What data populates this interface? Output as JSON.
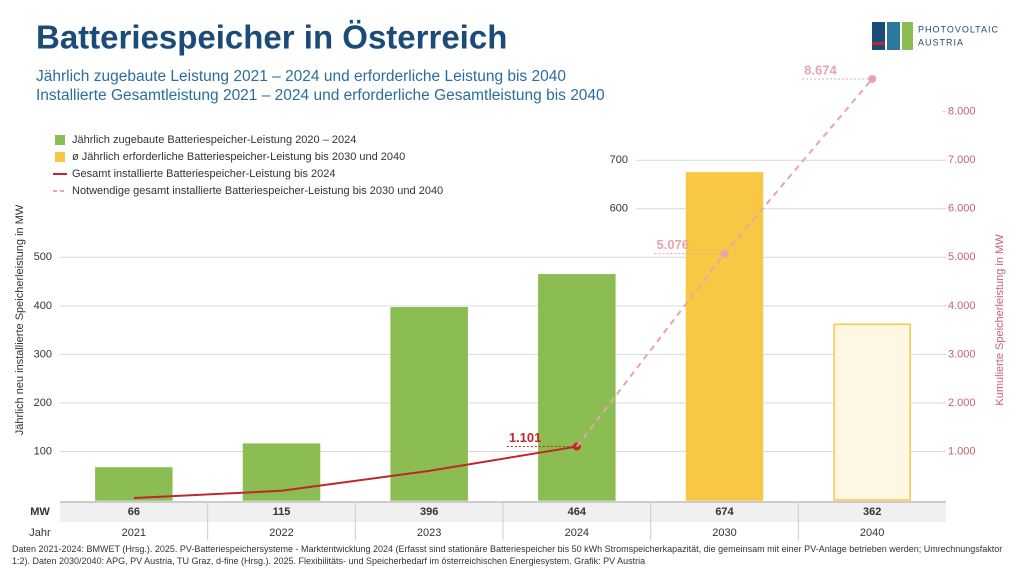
{
  "chart_data": {
    "type": "bar",
    "title": "Batteriespeicher in Österreich",
    "subtitle": [
      "Jährlich zugebaute Leistung 2021 – 2024 und erforderliche Leistung bis 2040",
      "Installierte Gesamtleistung 2021 – 2024 und erforderliche Gesamtleistung bis 2040"
    ],
    "logo": [
      "PHOTOVOLTAIC",
      "AUSTRIA"
    ],
    "y_label": "Jährlich neu installierte Speicherleistung in MW",
    "y2_label": "Kumulierte Speicherleistung in MW",
    "table_row_labels": [
      "MW",
      "Jahr"
    ],
    "categories": [
      "2021",
      "2022",
      "2023",
      "2024",
      "2030",
      "2040"
    ],
    "series": [
      {
        "name": "Jährlich zugebaute Batteriespeicher-Leistung 2020 – 2024",
        "kind": "bar",
        "color": "#8bbd53",
        "values": [
          66,
          115,
          396,
          464,
          null,
          null
        ]
      },
      {
        "name": "ø Jährlich erforderliche Batteriespeicher-Leistung bis 2030 und 2040",
        "kind": "bar",
        "color": "#f8c844",
        "fills": [
          null,
          null,
          null,
          null,
          "#f8c844",
          "#fdf7e3"
        ],
        "values": [
          null,
          null,
          null,
          null,
          674,
          362
        ]
      },
      {
        "name": "Gesamt installierte Batteriespeicher-Leistung bis 2024",
        "kind": "line",
        "axis": "y2",
        "color": "#c0272d",
        "values": [
          40,
          190,
          600,
          1101,
          null,
          null
        ],
        "value_labels": [
          null,
          null,
          null,
          "1.101",
          null,
          null
        ]
      },
      {
        "name": "Notwendige gesamt installierte Batteriespeicher-Leistung bis 2030 und 2040",
        "kind": "line",
        "dashed": true,
        "axis": "y2",
        "color": "#e8a3ad",
        "values": [
          null,
          null,
          null,
          1101,
          5076,
          8674
        ],
        "value_labels": [
          null,
          null,
          null,
          null,
          "5.076",
          "8.674"
        ]
      }
    ],
    "ylim": [
      0,
      855
    ],
    "yticks": [
      100,
      200,
      300,
      400,
      500,
      600,
      700
    ],
    "y2lim": [
      0,
      8550
    ],
    "y2ticks": [
      {
        "value": 1000,
        "label": "1.000"
      },
      {
        "value": 2000,
        "label": "2.000"
      },
      {
        "value": 3000,
        "label": "3.000"
      },
      {
        "value": 4000,
        "label": "4.000"
      },
      {
        "value": 5000,
        "label": "5.000"
      },
      {
        "value": 6000,
        "label": "6.000"
      },
      {
        "value": 7000,
        "label": "7.000"
      },
      {
        "value": 8000,
        "label": "8.000"
      }
    ],
    "grid": true,
    "footnote": "Daten 2021-2024: BMWET (Hrsg.). 2025. PV-Batteriespeichersysteme - Marktentwicklung 2024 (Erfasst sind stationäre Batteriespeicher bis 50 kWh Stromspeicherkapazität, die gemeinsam mit einer PV-Anlage betrieben werden; Umrechnungsfaktor 1:2). Daten 2030/2040: APG, PV Austria, TU Graz, d-fine (Hrsg.). 2025. Flexibilitäts- und Speicherbedarf im österreichischen Energiesystem. Grafik: PV Austria"
  }
}
